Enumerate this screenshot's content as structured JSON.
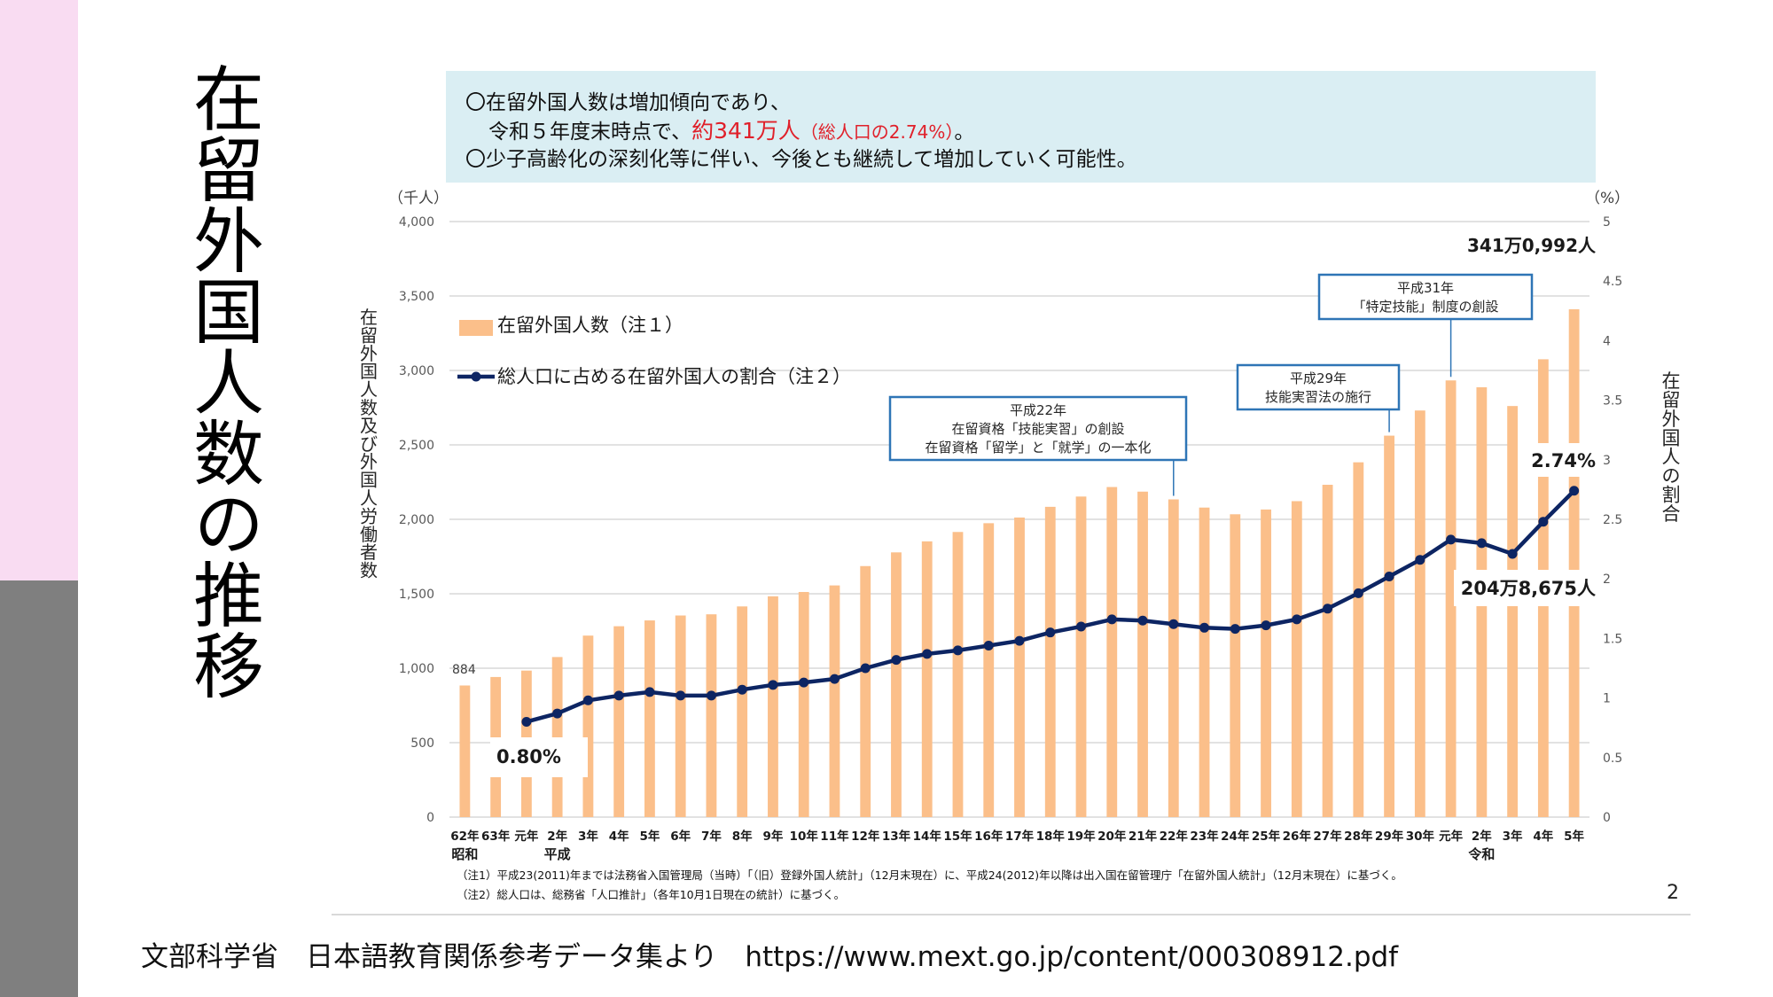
{
  "slide": {
    "title": "在留外国人数の推移",
    "page_number": "2",
    "source": "文部科学省　日本語教育関係参考データ集より　https://www.mext.go.jp/content/000308912.pdf",
    "colors": {
      "sidebar_top": "#f9dcf2",
      "sidebar_bottom": "#7f7f7f",
      "summary_bg": "#daeef3",
      "highlight_red": "#e0202a"
    }
  },
  "summary": {
    "line1": "〇在留外国人数は増加傾向であり、",
    "line2_prefix": "令和５年度末時点で、",
    "line2_highlight": "約341万人",
    "line2_paren": "（総人口の2.74%）",
    "line2_suffix": "。",
    "line3": "〇少子高齢化の深刻化等に伴い、今後とも継続して増加していく可能性。"
  },
  "footnotes": {
    "note1": "（注1）平成23(2011)年までは法務省入国管理局（当時）「（旧）登録外国人統計」（12月末現在）に、平成24(2012)年以降は出入国在留管理庁「在留外国人統計」（12月末現在）に基づく。",
    "note2": "（注2）総人口は、総務省「人口推計」（各年10月1日現在の統計）に基づく。"
  },
  "chart_data": {
    "type": "bar",
    "title": "在留外国人数の推移",
    "categories": [
      "62年",
      "63年",
      "元年",
      "2年",
      "3年",
      "4年",
      "5年",
      "6年",
      "7年",
      "8年",
      "9年",
      "10年",
      "11年",
      "12年",
      "13年",
      "14年",
      "15年",
      "16年",
      "17年",
      "18年",
      "19年",
      "20年",
      "21年",
      "22年",
      "23年",
      "24年",
      "25年",
      "26年",
      "27年",
      "28年",
      "29年",
      "30年",
      "元年",
      "2年",
      "3年",
      "4年",
      "5年"
    ],
    "era_labels": [
      {
        "label": "昭和",
        "at_category_index": 0
      },
      {
        "label": "平成",
        "at_category_index": 3
      },
      {
        "label": "令和",
        "at_category_index": 33
      }
    ],
    "left_axis": {
      "unit": "（千人）",
      "label": "在留外国人数及び外国人労働者数",
      "ylim": [
        0,
        4000
      ],
      "ticks": [
        "0",
        "500",
        "1,000",
        "1,500",
        "2,000",
        "2,500",
        "3,000",
        "3,500",
        "4,000"
      ],
      "tick_values": [
        0,
        500,
        1000,
        1500,
        2000,
        2500,
        3000,
        3500,
        4000
      ]
    },
    "right_axis": {
      "unit": "（%）",
      "label": "在留外国人の割合",
      "ylim": [
        0,
        5
      ],
      "ticks": [
        "0",
        "0.5",
        "1",
        "1.5",
        "2",
        "2.5",
        "3",
        "3.5",
        "4",
        "4.5",
        "5"
      ],
      "tick_values": [
        0,
        0.5,
        1,
        1.5,
        2,
        2.5,
        3,
        3.5,
        4,
        4.5,
        5
      ]
    },
    "grid": true,
    "legend_position": "top-left",
    "series": [
      {
        "name": "在留外国人数（注１）",
        "kind": "bar",
        "axis": "left",
        "color": "#fbbf8a",
        "values": [
          884,
          941,
          984,
          1075,
          1219,
          1282,
          1321,
          1354,
          1362,
          1415,
          1483,
          1512,
          1556,
          1686,
          1778,
          1852,
          1915,
          1974,
          2012,
          2084,
          2153,
          2217,
          2186,
          2134,
          2079,
          2034,
          2066,
          2122,
          2232,
          2383,
          2562,
          2731,
          2933,
          2887,
          2761,
          3075,
          3411
        ]
      },
      {
        "name": "総人口に占める在留外国人の割合（注２）",
        "kind": "line",
        "axis": "right",
        "color": "#0d2563",
        "values": [
          null,
          null,
          0.8,
          0.87,
          0.98,
          1.02,
          1.05,
          1.02,
          1.02,
          1.07,
          1.11,
          1.13,
          1.16,
          1.25,
          1.32,
          1.37,
          1.4,
          1.44,
          1.48,
          1.55,
          1.6,
          1.66,
          1.65,
          1.62,
          1.59,
          1.58,
          1.61,
          1.66,
          1.75,
          1.88,
          2.02,
          2.16,
          2.33,
          2.3,
          2.21,
          2.48,
          2.74
        ]
      }
    ],
    "data_labels": {
      "first_bar": "884",
      "first_pct": "0.80%",
      "last_pct": "2.74%",
      "last_total": "341万0,992人",
      "workers": "204万8,675人"
    },
    "annotations": [
      {
        "lines": [
          "平成22年",
          "在留資格「技能実習」の創設",
          "在留資格「留学」と「就学」の一本化"
        ],
        "category_index": 23
      },
      {
        "lines": [
          "平成29年",
          "技能実習法の施行"
        ],
        "category_index": 30
      },
      {
        "lines": [
          "平成31年",
          "「特定技能」制度の創設"
        ],
        "category_index": 32
      }
    ]
  }
}
